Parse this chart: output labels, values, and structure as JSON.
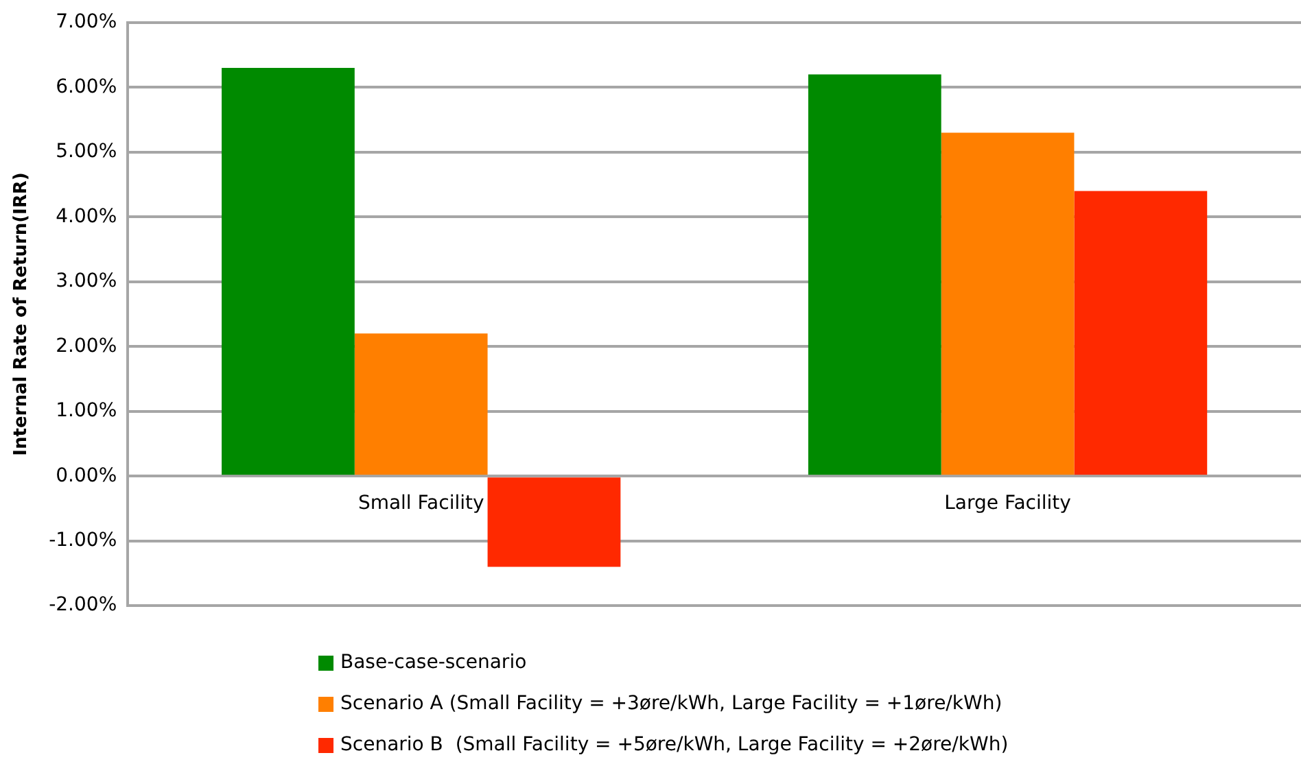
{
  "chart_data": {
    "type": "bar",
    "ylabel": "Internal Rate of Return(IRR)",
    "categories": [
      "Small Facility",
      "Large Facility"
    ],
    "series": [
      {
        "name": "Base-case-scenario",
        "color": "#008a00",
        "values": [
          6.3,
          6.2
        ]
      },
      {
        "name": "Scenario A (Small Facility = +3øre/kWh, Large Facility = +1øre/kWh)",
        "color": "#ff7f00",
        "values": [
          2.2,
          5.3
        ]
      },
      {
        "name": "Scenario B  (Small Facility = +5øre/kWh, Large Facility = +2øre/kWh)",
        "color": "#ff2900",
        "values": [
          -1.4,
          4.4
        ]
      }
    ],
    "ylim": [
      -2,
      7
    ],
    "yticks": [
      {
        "value": -2,
        "label": "-2.00%"
      },
      {
        "value": -1,
        "label": "-1.00%"
      },
      {
        "value": 0,
        "label": "0.00%"
      },
      {
        "value": 1,
        "label": "1.00%"
      },
      {
        "value": 2,
        "label": "2.00%"
      },
      {
        "value": 3,
        "label": "3.00%"
      },
      {
        "value": 4,
        "label": "4.00%"
      },
      {
        "value": 5,
        "label": "5.00%"
      },
      {
        "value": 6,
        "label": "6.00%"
      },
      {
        "value": 7,
        "label": "7.00%"
      }
    ],
    "grid": "y",
    "legend": "bottom"
  }
}
